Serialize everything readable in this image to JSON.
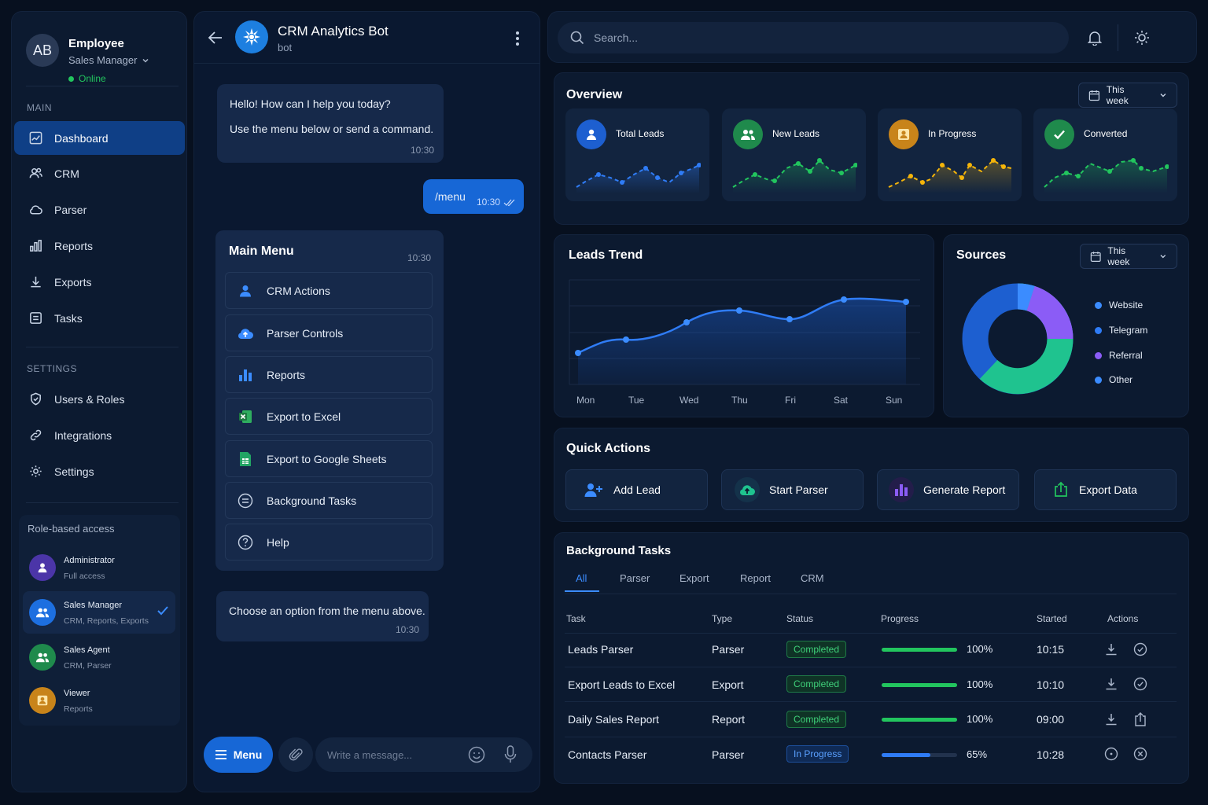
{
  "profile": {
    "initials": "AB",
    "name": "Employee",
    "role": "Sales Manager",
    "status": "Online"
  },
  "sidebar": {
    "main_heading": "MAIN",
    "main_items": [
      {
        "label": "Dashboard",
        "icon": "dashboard-icon"
      },
      {
        "label": "CRM",
        "icon": "users-icon"
      },
      {
        "label": "Parser",
        "icon": "cloud-icon"
      },
      {
        "label": "Reports",
        "icon": "bar-chart-icon"
      },
      {
        "label": "Exports",
        "icon": "download-icon"
      },
      {
        "label": "Tasks",
        "icon": "list-icon"
      }
    ],
    "settings_heading": "SETTINGS",
    "settings_items": [
      {
        "label": "Users & Roles",
        "icon": "shield-icon"
      },
      {
        "label": "Integrations",
        "icon": "link-icon"
      },
      {
        "label": "Settings",
        "icon": "gear-icon"
      }
    ],
    "rba_title": "Role-based access",
    "roles": [
      {
        "name": "Administrator",
        "desc": "Full access",
        "color": "#5b3fb8"
      },
      {
        "name": "Sales Manager",
        "desc": "CRM, Reports, Exports",
        "color": "#1d6fe0"
      },
      {
        "name": "Sales Agent",
        "desc": "CRM, Parser",
        "color": "#1f8a4c"
      },
      {
        "name": "Viewer",
        "desc": "Reports",
        "color": "#c8841a"
      }
    ]
  },
  "chat": {
    "bot_name": "CRM Analytics Bot",
    "bot_sub": "bot",
    "greeting_line1": "Hello! How can I help you today?",
    "greeting_line2": "Use the menu below or send a command.",
    "greeting_time": "10:30",
    "user_msg": "/menu",
    "user_time": "10:30",
    "menu_title": "Main Menu",
    "menu_time": "10:30",
    "menu_items": [
      "CRM Actions",
      "Parser Controls",
      "Reports",
      "Export to Excel",
      "Export to Google Sheets",
      "Background Tasks",
      "Help"
    ],
    "choose_text": "Choose an option from the menu above.",
    "choose_time": "10:30",
    "menu_button": "Menu",
    "input_placeholder": "Write a message..."
  },
  "search": {
    "placeholder": "Search..."
  },
  "overview": {
    "title": "Overview",
    "range": "This week",
    "kpis": [
      {
        "label": "Total Leads",
        "color": "#2f7cf6"
      },
      {
        "label": "New Leads",
        "color": "#22c55e"
      },
      {
        "label": "In Progress",
        "color": "#f5b50a"
      },
      {
        "label": "Converted",
        "color": "#22c55e"
      }
    ]
  },
  "trend": {
    "title": "Leads Trend",
    "days": [
      "Mon",
      "Tue",
      "Wed",
      "Thu",
      "Fri",
      "Sat",
      "Sun"
    ]
  },
  "sources": {
    "title": "Sources",
    "range": "This week",
    "items": [
      {
        "label": "Website",
        "color": "#1d5fd0"
      },
      {
        "label": "Telegram",
        "color": "#1fc38f"
      },
      {
        "label": "Referral",
        "color": "#8b5cf6"
      },
      {
        "label": "Other",
        "color": "#3b8cff"
      }
    ]
  },
  "quick": {
    "title": "Quick Actions",
    "items": [
      "Add Lead",
      "Start Parser",
      "Generate Report",
      "Export Data"
    ]
  },
  "tasks": {
    "title": "Background Tasks",
    "tabs": [
      "All",
      "Parser",
      "Export",
      "Report",
      "CRM"
    ],
    "columns": [
      "Task",
      "Type",
      "Status",
      "Progress",
      "Started",
      "Actions"
    ],
    "rows": [
      {
        "task": "Leads Parser",
        "type": "Parser",
        "status": "Completed",
        "progress": "100%",
        "started": "10:15"
      },
      {
        "task": "Export Leads to Excel",
        "type": "Export",
        "status": "Completed",
        "progress": "100%",
        "started": "10:10"
      },
      {
        "task": "Daily Sales Report",
        "type": "Report",
        "status": "Completed",
        "progress": "100%",
        "started": "09:00"
      },
      {
        "task": "Contacts Parser",
        "type": "Parser",
        "status": "In Progress",
        "progress": "65%",
        "started": "10:28"
      }
    ]
  }
}
